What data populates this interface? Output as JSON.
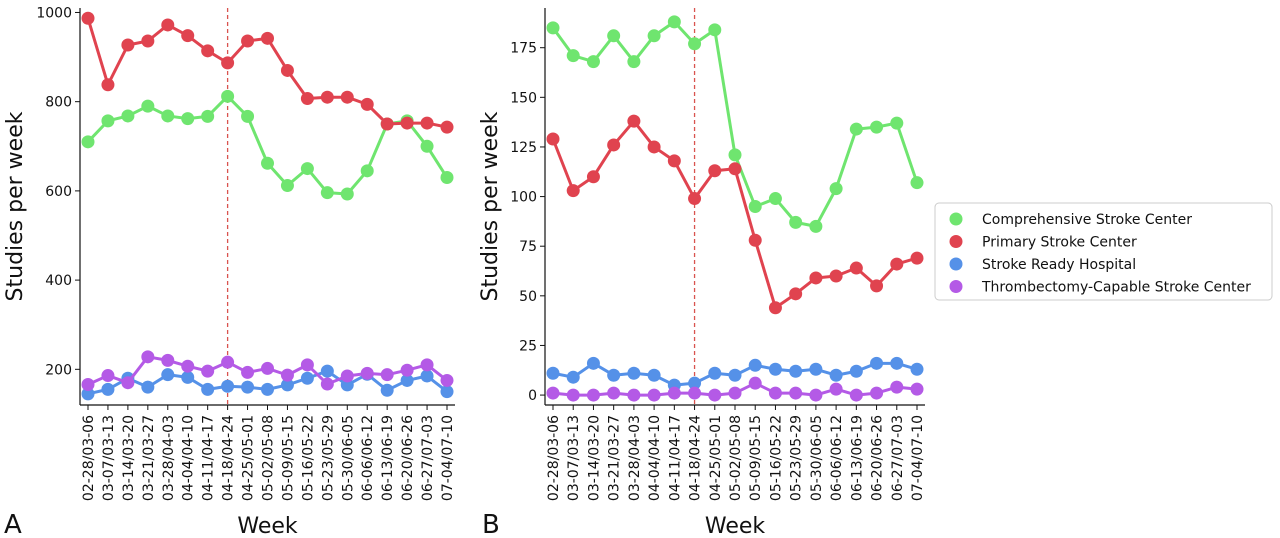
{
  "chart_data": [
    {
      "type": "line",
      "panel_label": "A",
      "xlabel": "Week",
      "ylabel": "Studies per week",
      "ylim": [
        120,
        1010
      ],
      "yticks": [
        200,
        400,
        600,
        800,
        1000
      ],
      "categories": [
        "02-28/03-06",
        "03-07/03-13",
        "03-14/03-20",
        "03-21/03-27",
        "03-28/04-03",
        "04-04/04-10",
        "04-11/04-17",
        "04-18/04-24",
        "04-25/05-01",
        "05-02/05-08",
        "05-09/05-15",
        "05-16/05-22",
        "05-23/05-29",
        "05-30/06-05",
        "06-06/06-12",
        "06-13/06-19",
        "06-20/06-26",
        "06-27/07-03",
        "07-04/07-10"
      ],
      "marker_week": "04-18/04-24",
      "series": [
        {
          "name": "Comprehensive Stroke Center",
          "color": "#6fe56f",
          "values": [
            710,
            757,
            768,
            790,
            768,
            762,
            767,
            812,
            767,
            662,
            612,
            650,
            596,
            593,
            645,
            750,
            757,
            700,
            630
          ]
        },
        {
          "name": "Primary Stroke Center",
          "color": "#e0434f",
          "values": [
            987,
            838,
            927,
            936,
            972,
            948,
            914,
            887,
            936,
            942,
            870,
            807,
            810,
            810,
            794,
            750,
            752,
            752,
            743
          ]
        },
        {
          "name": "Stroke Ready Hospital",
          "color": "#5591e8",
          "values": [
            145,
            155,
            180,
            160,
            188,
            182,
            155,
            162,
            160,
            155,
            165,
            180,
            196,
            165,
            189,
            153,
            175,
            185,
            150
          ]
        },
        {
          "name": "Thrombectomy-Capable Stroke Center",
          "color": "#b45ae6",
          "values": [
            166,
            186,
            170,
            228,
            220,
            207,
            196,
            216,
            193,
            202,
            187,
            210,
            167,
            185,
            191,
            188,
            198,
            210,
            175
          ]
        }
      ]
    },
    {
      "type": "line",
      "panel_label": "B",
      "xlabel": "Week",
      "ylabel": "Studies per week",
      "ylim": [
        -5,
        195
      ],
      "yticks": [
        0,
        25,
        50,
        75,
        100,
        125,
        150,
        175
      ],
      "categories": [
        "02-28/03-06",
        "03-07/03-13",
        "03-14/03-20",
        "03-21/03-27",
        "03-28/04-03",
        "04-04/04-10",
        "04-11/04-17",
        "04-18/04-24",
        "04-25/05-01",
        "05-02/05-08",
        "05-09/05-15",
        "05-16/05-22",
        "05-23/05-29",
        "05-30/06-05",
        "06-06/06-12",
        "06-13/06-19",
        "06-20/06-26",
        "06-27/07-03",
        "07-04/07-10"
      ],
      "marker_week": "04-18/04-24",
      "series": [
        {
          "name": "Comprehensive Stroke Center",
          "color": "#6fe56f",
          "values": [
            185,
            171,
            168,
            181,
            168,
            181,
            188,
            177,
            184,
            121,
            95,
            99,
            87,
            85,
            104,
            134,
            135,
            137,
            107
          ]
        },
        {
          "name": "Primary Stroke Center",
          "color": "#e0434f",
          "values": [
            129,
            103,
            110,
            126,
            138,
            125,
            118,
            99,
            113,
            114,
            78,
            44,
            51,
            59,
            60,
            64,
            55,
            66,
            69
          ]
        },
        {
          "name": "Stroke Ready Hospital",
          "color": "#5591e8",
          "values": [
            11,
            9,
            16,
            10,
            11,
            10,
            5,
            6,
            11,
            10,
            15,
            13,
            12,
            13,
            10,
            12,
            16,
            16,
            13
          ]
        },
        {
          "name": "Thrombectomy-Capable Stroke Center",
          "color": "#b45ae6",
          "values": [
            1,
            0,
            0,
            1,
            0,
            0,
            1,
            1,
            0,
            1,
            6,
            1,
            1,
            0,
            3,
            0,
            1,
            4,
            3
          ]
        }
      ]
    }
  ],
  "legend": {
    "placement": "right",
    "entries": [
      {
        "label": "Comprehensive Stroke Center",
        "color": "#6fe56f"
      },
      {
        "label": "Primary Stroke Center",
        "color": "#e0434f"
      },
      {
        "label": "Stroke Ready Hospital",
        "color": "#5591e8"
      },
      {
        "label": "Thrombectomy-Capable Stroke Center",
        "color": "#b45ae6"
      }
    ]
  },
  "colors": {
    "marker_line": "#d9534f",
    "axis": "#111111"
  }
}
